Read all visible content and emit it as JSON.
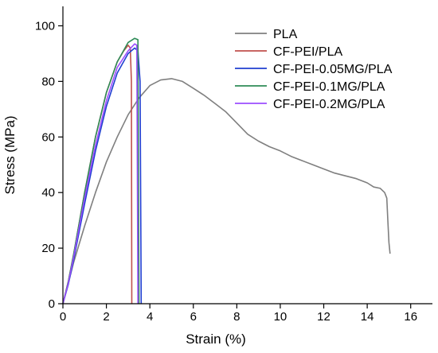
{
  "chart_data": {
    "type": "line",
    "xlabel": "Strain (%)",
    "ylabel": "Stress (MPa)",
    "xlim": [
      0,
      17
    ],
    "ylim": [
      0,
      107
    ],
    "xticks": [
      0,
      2,
      4,
      6,
      8,
      10,
      12,
      14,
      16
    ],
    "yticks": [
      0,
      20,
      40,
      60,
      80,
      100
    ],
    "grid": false,
    "legend_position": "top-right",
    "series": [
      {
        "name": "PLA",
        "color": "#7f7f7f",
        "x": [
          0,
          0.2,
          0.5,
          1.0,
          1.5,
          2.0,
          2.5,
          3.0,
          3.5,
          4.0,
          4.5,
          5.0,
          5.5,
          6.0,
          6.5,
          7.0,
          7.5,
          8.0,
          8.5,
          9.0,
          9.5,
          10.0,
          10.5,
          11.0,
          11.5,
          12.0,
          12.5,
          13.0,
          13.5,
          14.0,
          14.3,
          14.6,
          14.8,
          14.9,
          14.95,
          15.0,
          15.05
        ],
        "y": [
          0,
          6,
          15,
          28,
          40,
          51,
          60,
          68,
          74,
          78.5,
          80.5,
          81,
          80,
          77.5,
          75,
          72,
          69,
          65,
          61,
          58.5,
          56.5,
          55,
          53,
          51.5,
          50,
          48.5,
          47,
          46,
          45,
          43.5,
          42,
          41.5,
          40,
          38,
          30,
          22,
          18
        ]
      },
      {
        "name": "CF-PEI/PLA",
        "color": "#c0504d",
        "x": [
          0,
          0.25,
          0.5,
          1.0,
          1.5,
          2.0,
          2.5,
          2.8,
          3.0,
          3.1,
          3.15,
          3.17
        ],
        "y": [
          0,
          8,
          18,
          40,
          60,
          76,
          87,
          91,
          93,
          92,
          80,
          0
        ]
      },
      {
        "name": "CF-PEI-0.05MG/PLA",
        "color": "#1f3fd0",
        "x": [
          0,
          0.25,
          0.5,
          1.0,
          1.5,
          2.0,
          2.5,
          3.0,
          3.3,
          3.45,
          3.55,
          3.6
        ],
        "y": [
          0,
          7,
          16,
          36,
          55,
          71,
          83,
          90,
          92,
          91,
          80,
          0
        ]
      },
      {
        "name": "CF-PEI-0.1MG/PLA",
        "color": "#2e8b57",
        "x": [
          0,
          0.25,
          0.5,
          1.0,
          1.5,
          2.0,
          2.5,
          3.0,
          3.3,
          3.45,
          3.5
        ],
        "y": [
          0,
          8,
          18,
          40,
          60,
          76,
          87,
          94,
          95.5,
          95,
          0
        ]
      },
      {
        "name": "CF-PEI-0.2MG/PLA",
        "color": "#9b4dff",
        "x": [
          0,
          0.25,
          0.5,
          1.0,
          1.5,
          2.0,
          2.5,
          3.0,
          3.3,
          3.4,
          3.45
        ],
        "y": [
          0,
          7.5,
          17,
          38,
          57,
          73,
          85,
          91,
          93.5,
          93,
          0
        ]
      }
    ]
  }
}
